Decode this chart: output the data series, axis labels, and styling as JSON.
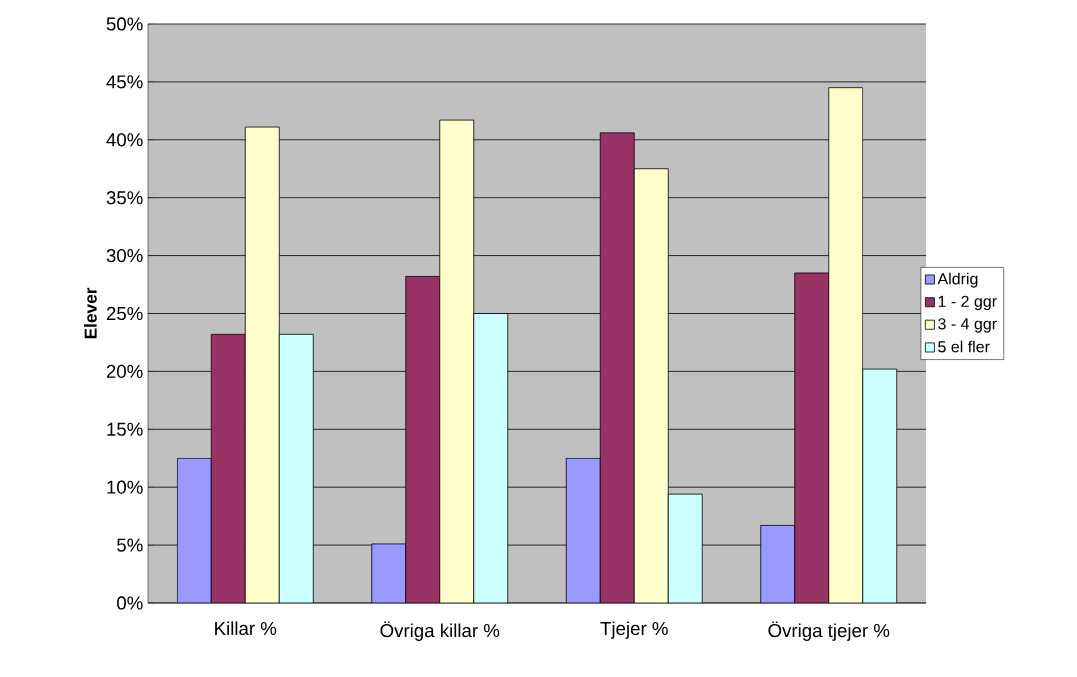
{
  "chart_data": {
    "type": "bar",
    "ylabel": "Elever",
    "categories": [
      "Killar %",
      "Övriga killar %",
      "Tjejer %",
      "Övriga tjejer %"
    ],
    "series": [
      {
        "name": "Aldrig",
        "color": "#9999ff",
        "values": [
          12.5,
          5.1,
          12.5,
          6.7
        ]
      },
      {
        "name": "1 - 2 ggr",
        "color": "#993366",
        "values": [
          23.2,
          28.2,
          40.6,
          28.5
        ]
      },
      {
        "name": "3 - 4 ggr",
        "color": "#ffffcc",
        "values": [
          41.1,
          41.7,
          37.5,
          44.5
        ]
      },
      {
        "name": "5 el fler",
        "color": "#ccffff",
        "values": [
          23.2,
          25.0,
          9.4,
          20.2
        ]
      }
    ],
    "ylim": [
      0,
      50
    ],
    "yticks": [
      {
        "value": 0,
        "label": "0%"
      },
      {
        "value": 5,
        "label": "5%"
      },
      {
        "value": 10,
        "label": "10%"
      },
      {
        "value": 15,
        "label": "15%"
      },
      {
        "value": 20,
        "label": "20%"
      },
      {
        "value": 25,
        "label": "25%"
      },
      {
        "value": 30,
        "label": "30%"
      },
      {
        "value": 35,
        "label": "35%"
      },
      {
        "value": 40,
        "label": "40%"
      },
      {
        "value": 45,
        "label": "45%"
      },
      {
        "value": 50,
        "label": "50%"
      }
    ],
    "grid": "y",
    "legend": "right"
  }
}
